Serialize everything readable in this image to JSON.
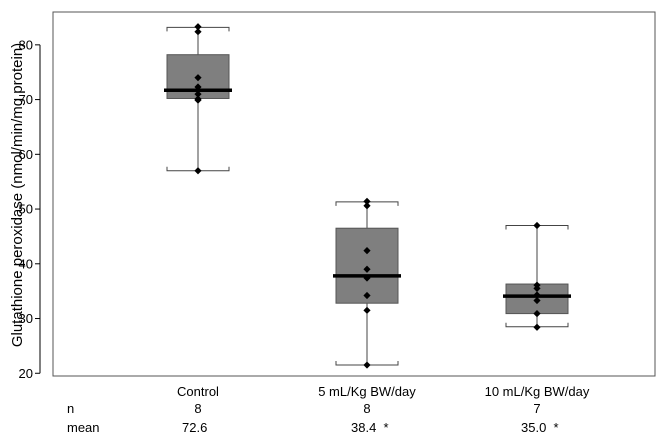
{
  "chart_data": {
    "type": "box",
    "ylabel": "Glutathione peroxidase (nmol/min/mg protein)",
    "ylim": [
      19.5,
      86
    ],
    "yticks": [
      20,
      30,
      40,
      50,
      60,
      70,
      80
    ],
    "categories": [
      "Control",
      "5 mL/Kg BW/day",
      "10 mL/Kg BW/day"
    ],
    "boxes": [
      {
        "whisker_low": 57.0,
        "q1": 70.2,
        "median": 71.7,
        "q3": 78.2,
        "whisker_high": 83.2
      },
      {
        "whisker_low": 21.5,
        "q1": 32.8,
        "median": 37.8,
        "q3": 46.5,
        "whisker_high": 51.3
      },
      {
        "whisker_low": 28.5,
        "q1": 30.9,
        "median": 34.1,
        "q3": 36.3,
        "whisker_high": 47.0
      }
    ],
    "points": [
      [
        83.3,
        82.4,
        74.0,
        72.3,
        71.0,
        70.1,
        69.9,
        57.0
      ],
      [
        51.4,
        50.6,
        42.4,
        39.0,
        37.4,
        34.2,
        31.5,
        21.5
      ],
      [
        47.0,
        36.1,
        35.5,
        34.3,
        33.3,
        30.9,
        28.4
      ]
    ],
    "table": {
      "row_labels": [
        "n",
        "mean"
      ],
      "n": [
        "8",
        "8",
        "7"
      ],
      "mean": [
        "72.6",
        "38.4  *",
        "35.0  *"
      ]
    },
    "colors": {
      "box_fill": "#7f7f7f",
      "box_stroke": "#555555",
      "median": "#000000",
      "point": "#000000"
    }
  }
}
